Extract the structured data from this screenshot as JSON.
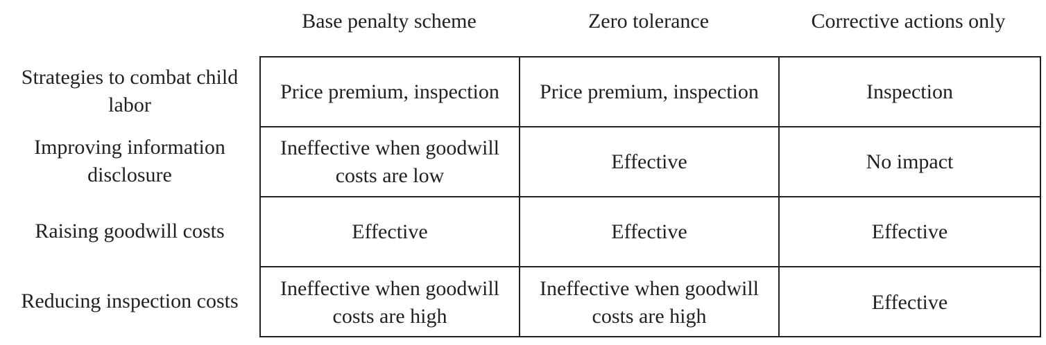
{
  "columns": [
    "Base penalty scheme",
    "Zero tolerance",
    "Corrective actions only"
  ],
  "rows": [
    {
      "label": "Strategies to combat child labor",
      "cells": [
        "Price premium, inspection",
        "Price premium, inspection",
        "Inspection"
      ]
    },
    {
      "label": "Improving information disclosure",
      "cells": [
        "Ineffective when goodwill costs are low",
        "Effective",
        "No impact"
      ]
    },
    {
      "label": "Raising goodwill costs",
      "cells": [
        "Effective",
        "Effective",
        "Effective"
      ]
    },
    {
      "label": "Reducing inspection costs",
      "cells": [
        "Ineffective when goodwill costs are high",
        "Ineffective when goodwill costs are high",
        "Effective"
      ]
    }
  ]
}
